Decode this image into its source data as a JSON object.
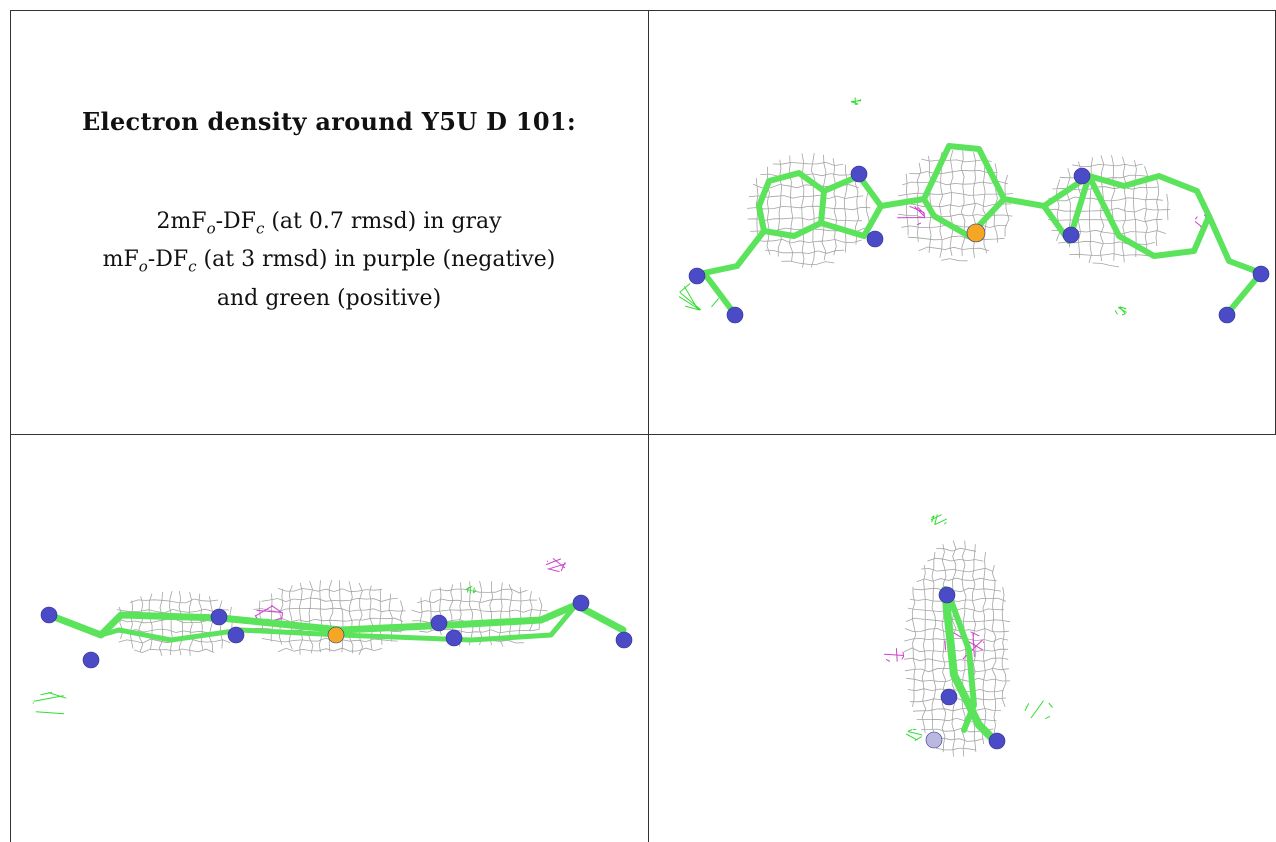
{
  "title": "Electron density around Y5U D 101:",
  "legend": {
    "line1": {
      "pre": "2mF",
      "sub1": "o",
      "mid": "-DF",
      "sub2": "c",
      "post": " (at 0.7 rmsd) in gray"
    },
    "line2": {
      "pre": "mF",
      "sub1": "o",
      "mid": "-DF",
      "sub2": "c",
      "post": " (at 3 rmsd) in purple (negative)"
    },
    "line3": "and green (positive)"
  },
  "colors": {
    "mesh_2fofc": "#9a9a9a",
    "fofc_negative": "#d040d0",
    "fofc_positive": "#33dd33",
    "carbon": "#5be35b",
    "nitrogen": "#4b4bc8",
    "sulfur": "#f5a623",
    "border": "#333333"
  },
  "panels": [
    {
      "name": "top-view",
      "view": "top"
    },
    {
      "name": "side-view",
      "view": "side"
    },
    {
      "name": "end-view",
      "view": "end"
    }
  ]
}
